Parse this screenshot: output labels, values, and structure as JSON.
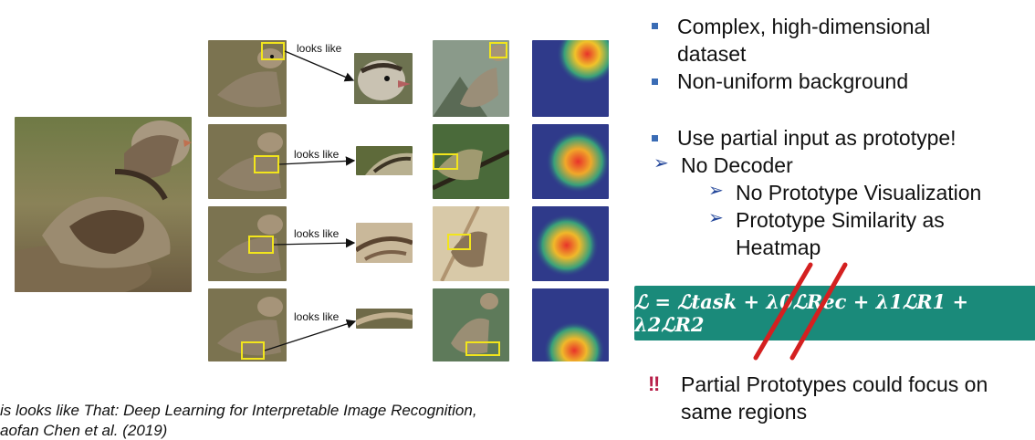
{
  "figure": {
    "looks_like_label": "looks like"
  },
  "bullets": {
    "b1_line1": "Complex, high-dimensional",
    "b1_line2": "dataset",
    "b2": "Non-uniform background",
    "b3": "Use partial input as prototype!",
    "b4": "No Decoder",
    "b5": "No Prototype Visualization",
    "b6_line1": "Prototype Similarity as",
    "b6_line2": "Heatmap"
  },
  "equation": {
    "text": "ℒ = ℒtask + λ0ℒRec + λ1ℒR1 + λ2ℒR2"
  },
  "warning": {
    "marker": "‼",
    "line1": "Partial Prototypes could focus on",
    "line2": "same regions"
  },
  "citation": {
    "line1": "is looks like That: Deep Learning for Interpretable Image Recognition,",
    "line2": "aofan Chen et al. (2019)"
  },
  "colors": {
    "bullet_square": "#3a6cb5",
    "arrow": "#23469a",
    "equation_bg": "#1a8a7a",
    "strike": "#d42020",
    "box": "#f2e51c"
  }
}
